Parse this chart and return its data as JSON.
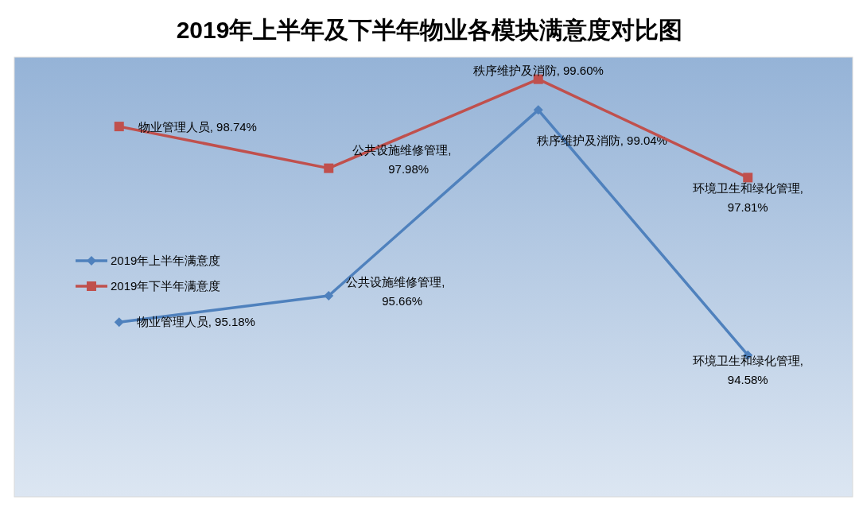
{
  "chart_data": {
    "type": "line",
    "title": "2019年上半年及下半年物业各模块满意度对比图",
    "categories": [
      null,
      null,
      null,
      null
    ],
    "ylim": [
      92,
      100
    ],
    "legend": "left",
    "series": [
      {
        "name": "2019年上半年满意度",
        "color": "#4f81bd",
        "marker": "diamond",
        "values": [
          95.18,
          95.66,
          99.04,
          94.58
        ],
        "value_labels": [
          "物业管理人员, 95.18%",
          "公共设施维修管理, 95.66%",
          "秩序维护及消防, 99.04%",
          "环境卫生和绿化管理, 94.58%"
        ]
      },
      {
        "name": "2019年下半年满意度",
        "color": "#c0504d",
        "marker": "square",
        "values": [
          98.74,
          97.98,
          99.6,
          97.81
        ],
        "value_labels": [
          "物业管理人员, 98.74%",
          "公共设施维修管理, 97.98%",
          "秩序维护及消防, 99.60%",
          "环境卫生和绿化管理, 97.81%"
        ]
      }
    ]
  }
}
